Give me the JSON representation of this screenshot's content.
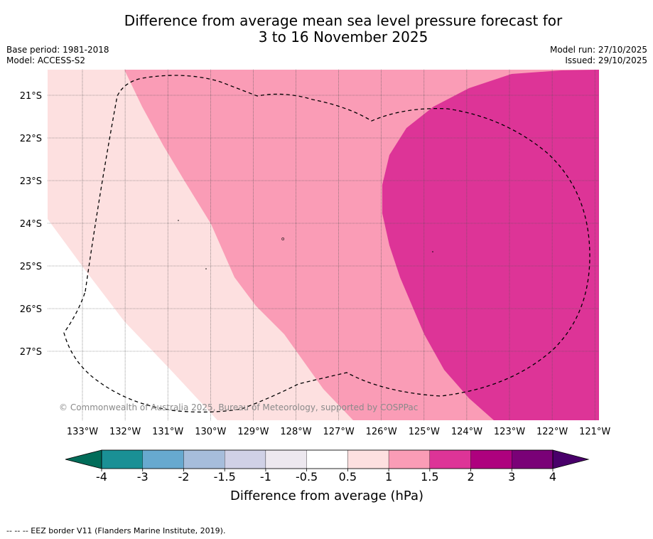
{
  "title_line1": "Difference from average mean sea level pressure forecast for",
  "title_line2": "3 to 16 November 2025",
  "meta": {
    "base_period": "Base period: 1981-2018",
    "model": "Model: ACCESS-S2",
    "model_run": "Model run: 27/10/2025",
    "issued": "Issued: 29/10/2025"
  },
  "map": {
    "lat_labels": [
      "21°S",
      "22°S",
      "23°S",
      "24°S",
      "25°S",
      "26°S",
      "27°S"
    ],
    "lon_labels": [
      "133°W",
      "132°W",
      "131°W",
      "130°W",
      "129°W",
      "128°W",
      "127°W",
      "126°W",
      "125°W",
      "124°W",
      "123°W",
      "122°W",
      "121°W"
    ],
    "copyright": "© Commonwealth of Australia 2025, Bureau of Meteorology, supported by COSPPac",
    "zone_colors": {
      "0.5_to_1": "#fde0e0",
      "1_to_1.5": "#fa9cb6",
      "1.5_to_2": "#dd3497",
      "-0.5_to_0.5": "#ffffff"
    }
  },
  "colorbar": {
    "ticks": [
      "-4",
      "-3",
      "-2",
      "-1.5",
      "-1",
      "-0.5",
      "0.5",
      "1",
      "1.5",
      "2",
      "3",
      "4"
    ],
    "colors": [
      "#1a9095",
      "#67a9cf",
      "#a6bddb",
      "#d0d1e6",
      "#ede8ef",
      "#ffffff",
      "#fde0e0",
      "#fa9cb6",
      "#dd3497",
      "#ae017e",
      "#7a0177"
    ],
    "low_extend_color": "#016c59",
    "high_extend_color": "#49006a",
    "label": "Difference from average (hPa)"
  },
  "footnote": "--  --  -- EEZ border V11 (Flanders Marine Institute, 2019)."
}
